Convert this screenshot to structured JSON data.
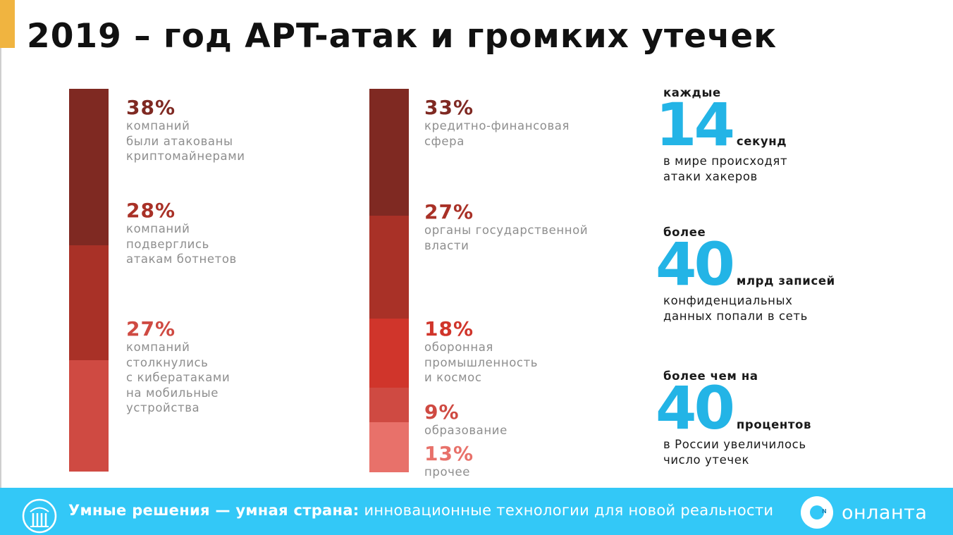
{
  "title": "2019 – год APT-атак и громких утечек",
  "colors": {
    "accent_tab": "#f0b440",
    "dark_red": "#7f2922",
    "mid_red": "#a93127",
    "bright_red": "#d0352b",
    "light_red": "#cf4a42",
    "pale_red": "#e8716a",
    "cyan": "#23b4e6",
    "footer_bg": "#33c8f7"
  },
  "attack_types": [
    {
      "percent": "38%",
      "value": 38,
      "color": "#7f2922",
      "lines": [
        "компаний",
        "были атакованы",
        "криптомайнерами"
      ]
    },
    {
      "percent": "28%",
      "value": 28,
      "color": "#a93127",
      "lines": [
        "компаний",
        "подверглись",
        "атакам ботнетов"
      ]
    },
    {
      "percent": "27%",
      "value": 27,
      "color": "#cf4a42",
      "lines": [
        "компаний",
        "столкнулись",
        "с кибератаками",
        "на мобильные",
        "устройства"
      ]
    }
  ],
  "sectors": [
    {
      "percent": "33%",
      "value": 33,
      "color": "#7f2922",
      "lines": [
        "кредитно-финансовая",
        "сфера"
      ]
    },
    {
      "percent": "27%",
      "value": 27,
      "color": "#a93127",
      "lines": [
        "органы государственной",
        "власти"
      ]
    },
    {
      "percent": "18%",
      "value": 18,
      "color": "#d0352b",
      "lines": [
        "оборонная",
        "промышленность",
        "и космос"
      ]
    },
    {
      "percent": "9%",
      "value": 9,
      "color": "#cf4a42",
      "lines": [
        "образование"
      ]
    },
    {
      "percent": "13%",
      "value": 13,
      "color": "#e8716a",
      "lines": [
        "прочее"
      ]
    }
  ],
  "stats": [
    {
      "pre": "каждые",
      "big": "14",
      "unit": "секунд",
      "lines": [
        "в мире происходят",
        "атаки хакеров"
      ]
    },
    {
      "pre": "более",
      "big": "40",
      "unit": "млрд записей",
      "lines": [
        "конфиденциальных",
        "данных попали в сеть"
      ]
    },
    {
      "pre": "более чем на",
      "big": "40",
      "unit": "процентов",
      "lines": [
        "в России увеличилось",
        "число утечек"
      ]
    }
  ],
  "footer": {
    "bold": "Умные решения — умная страна:",
    "regular": "инновационные технологии для новой реальности",
    "brand": "онланта",
    "logo_icon": "columns-emblem-icon",
    "brand_icon": "onlanta-logo-icon"
  }
}
